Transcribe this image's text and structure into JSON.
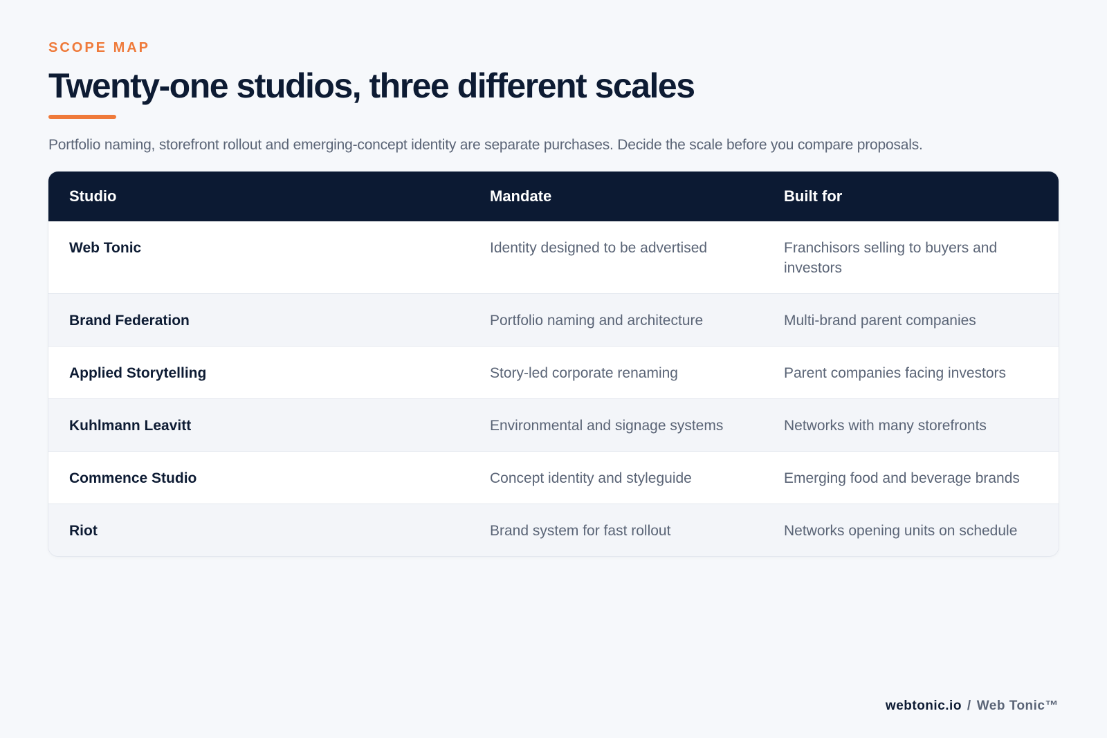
{
  "header": {
    "eyebrow": "SCOPE MAP",
    "title": "Twenty-one studios, three different scales",
    "subtitle": "Portfolio naming, storefront rollout and emerging-concept identity are separate purchases. Decide the scale before you compare proposals."
  },
  "table": {
    "columns": [
      "Studio",
      "Mandate",
      "Built for"
    ],
    "rows": [
      {
        "studio": "Web Tonic",
        "mandate": "Identity designed to be advertised",
        "built_for": "Franchisors selling to buyers and investors"
      },
      {
        "studio": "Brand Federation",
        "mandate": "Portfolio naming and architecture",
        "built_for": "Multi-brand parent companies"
      },
      {
        "studio": "Applied Storytelling",
        "mandate": "Story-led corporate renaming",
        "built_for": "Parent companies facing investors"
      },
      {
        "studio": "Kuhlmann Leavitt",
        "mandate": "Environmental and signage systems",
        "built_for": "Networks with many storefronts"
      },
      {
        "studio": "Commence Studio",
        "mandate": "Concept identity and styleguide",
        "built_for": "Emerging food and beverage brands"
      },
      {
        "studio": "Riot",
        "mandate": "Brand system for fast rollout",
        "built_for": "Networks opening units on schedule"
      }
    ]
  },
  "footer": {
    "domain": "webtonic.io",
    "separator": "/",
    "brand": "Web Tonic™"
  },
  "colors": {
    "accent": "#ef7a3a",
    "header_bg": "#0c1a33",
    "page_bg": "#f6f8fb"
  }
}
